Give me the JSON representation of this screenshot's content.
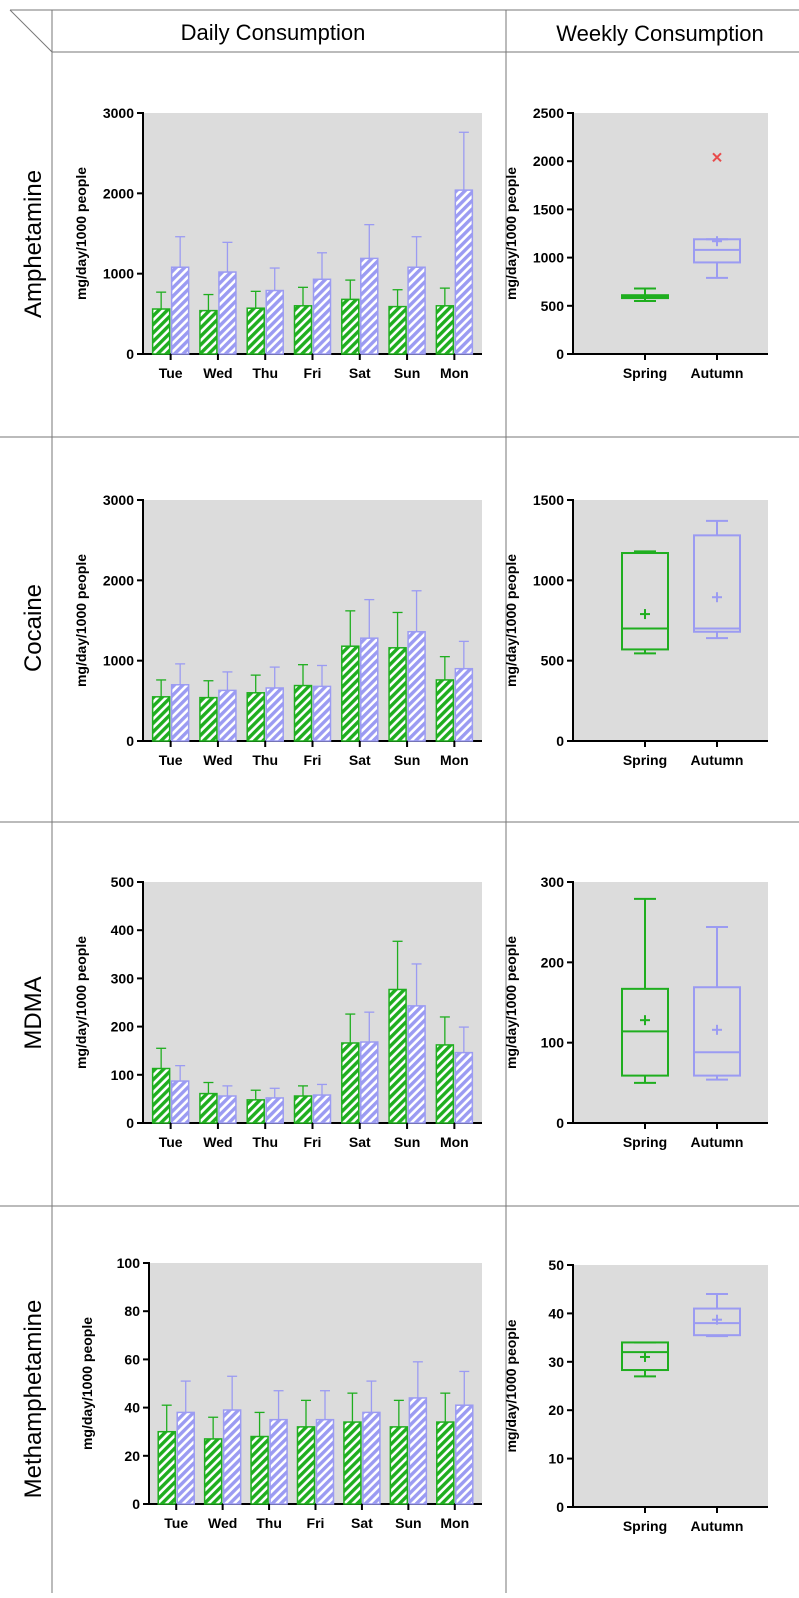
{
  "header": {
    "daily_label": "Daily Consumption",
    "weekly_label": "Weekly Consumption"
  },
  "colors": {
    "spring": "#1fae1f",
    "autumn": "#9b9bf2",
    "plot_bg": "#dcdcdc",
    "grid_border": "#777777",
    "outlier": "#e84b4b"
  },
  "chart_data": [
    {
      "type": "bar",
      "row_label": "Amphetamine",
      "categories": [
        "Tue",
        "Wed",
        "Thu",
        "Fri",
        "Sat",
        "Sun",
        "Mon"
      ],
      "ylabel": "mg/day/1000 people",
      "ylim": [
        0,
        3000
      ],
      "yticks": [
        0,
        1000,
        2000,
        3000
      ],
      "series": [
        {
          "key": "spring",
          "values": [
            560,
            540,
            570,
            600,
            680,
            590,
            600
          ],
          "errors": [
            210,
            200,
            210,
            230,
            240,
            210,
            220
          ]
        },
        {
          "key": "autumn",
          "values": [
            1080,
            1020,
            790,
            930,
            1190,
            1080,
            2040
          ],
          "errors": [
            380,
            370,
            280,
            330,
            420,
            380,
            720
          ]
        }
      ],
      "grid": false
    },
    {
      "type": "box",
      "row_label": "Amphetamine",
      "categories": [
        "Spring",
        "Autumn"
      ],
      "ylabel": "mg/day/1000 people",
      "ylim": [
        0,
        2500
      ],
      "yticks": [
        0,
        500,
        1000,
        1500,
        2000,
        2500
      ],
      "boxes": [
        {
          "key": "spring",
          "min": 550,
          "q1": 580,
          "median": 595,
          "q3": 610,
          "max": 680,
          "mean": 600
        },
        {
          "key": "autumn",
          "min": 790,
          "q1": 950,
          "median": 1080,
          "q3": 1190,
          "max": 1190,
          "mean": 1170,
          "outliers": [
            2040
          ]
        }
      ],
      "grid": false
    },
    {
      "type": "bar",
      "row_label": "Cocaine",
      "categories": [
        "Tue",
        "Wed",
        "Thu",
        "Fri",
        "Sat",
        "Sun",
        "Mon"
      ],
      "ylabel": "mg/day/1000 people",
      "ylim": [
        0,
        3000
      ],
      "yticks": [
        0,
        1000,
        2000,
        3000
      ],
      "series": [
        {
          "key": "spring",
          "values": [
            550,
            540,
            600,
            690,
            1180,
            1160,
            760
          ],
          "errors": [
            210,
            210,
            220,
            260,
            440,
            440,
            290
          ]
        },
        {
          "key": "autumn",
          "values": [
            700,
            630,
            660,
            680,
            1280,
            1360,
            900
          ],
          "errors": [
            260,
            230,
            260,
            260,
            480,
            510,
            340
          ]
        }
      ],
      "grid": false
    },
    {
      "type": "box",
      "row_label": "Cocaine",
      "categories": [
        "Spring",
        "Autumn"
      ],
      "ylabel": "mg/day/1000 people",
      "ylim": [
        0,
        1500
      ],
      "yticks": [
        0,
        500,
        1000,
        1500
      ],
      "boxes": [
        {
          "key": "spring",
          "min": 545,
          "q1": 570,
          "median": 700,
          "q3": 1170,
          "max": 1180,
          "mean": 790
        },
        {
          "key": "autumn",
          "min": 640,
          "q1": 680,
          "median": 700,
          "q3": 1280,
          "max": 1370,
          "mean": 895
        }
      ],
      "grid": false
    },
    {
      "type": "bar",
      "row_label": "MDMA",
      "categories": [
        "Tue",
        "Wed",
        "Thu",
        "Fri",
        "Sat",
        "Sun",
        "Mon"
      ],
      "ylabel": "mg/day/1000 people",
      "ylim": [
        0,
        500
      ],
      "yticks": [
        0,
        100,
        200,
        300,
        400,
        500
      ],
      "series": [
        {
          "key": "spring",
          "values": [
            113,
            61,
            48,
            56,
            166,
            277,
            162
          ],
          "errors": [
            42,
            23,
            20,
            21,
            60,
            100,
            58
          ]
        },
        {
          "key": "autumn",
          "values": [
            87,
            56,
            52,
            58,
            168,
            243,
            146
          ],
          "errors": [
            32,
            21,
            20,
            22,
            62,
            87,
            53
          ]
        }
      ],
      "grid": false
    },
    {
      "type": "box",
      "row_label": "MDMA",
      "categories": [
        "Spring",
        "Autumn"
      ],
      "ylabel": "mg/day/1000 people",
      "ylim": [
        0,
        300
      ],
      "yticks": [
        0,
        100,
        200,
        300
      ],
      "boxes": [
        {
          "key": "spring",
          "min": 50,
          "q1": 59,
          "median": 114,
          "q3": 167,
          "max": 279,
          "mean": 128
        },
        {
          "key": "autumn",
          "min": 54,
          "q1": 59,
          "median": 88,
          "q3": 169,
          "max": 244,
          "mean": 116
        }
      ],
      "grid": false
    },
    {
      "type": "bar",
      "row_label": "Methamphetamine",
      "categories": [
        "Tue",
        "Wed",
        "Thu",
        "Fri",
        "Sat",
        "Sun",
        "Mon"
      ],
      "ylabel": "mg/day/1000 people",
      "ylim": [
        0,
        100
      ],
      "yticks": [
        0,
        20,
        40,
        60,
        80,
        100
      ],
      "series": [
        {
          "key": "spring",
          "values": [
            30,
            27,
            28,
            32,
            34,
            32,
            34
          ],
          "errors": [
            11,
            9,
            10,
            11,
            12,
            11,
            12
          ]
        },
        {
          "key": "autumn",
          "values": [
            38,
            39,
            35,
            35,
            38,
            44,
            41
          ],
          "errors": [
            13,
            14,
            12,
            12,
            13,
            15,
            14
          ]
        }
      ],
      "grid": false
    },
    {
      "type": "box",
      "row_label": "Methamphetamine",
      "categories": [
        "Spring",
        "Autumn"
      ],
      "ylabel": "mg/day/1000 people",
      "ylim": [
        0,
        50
      ],
      "yticks": [
        0,
        10,
        20,
        30,
        40,
        50
      ],
      "boxes": [
        {
          "key": "spring",
          "min": 27,
          "q1": 28.3,
          "median": 32,
          "q3": 34,
          "max": 34,
          "mean": 31
        },
        {
          "key": "autumn",
          "min": 35.3,
          "q1": 35.5,
          "median": 38,
          "q3": 41,
          "max": 44,
          "mean": 38.7
        }
      ],
      "grid": false
    }
  ]
}
